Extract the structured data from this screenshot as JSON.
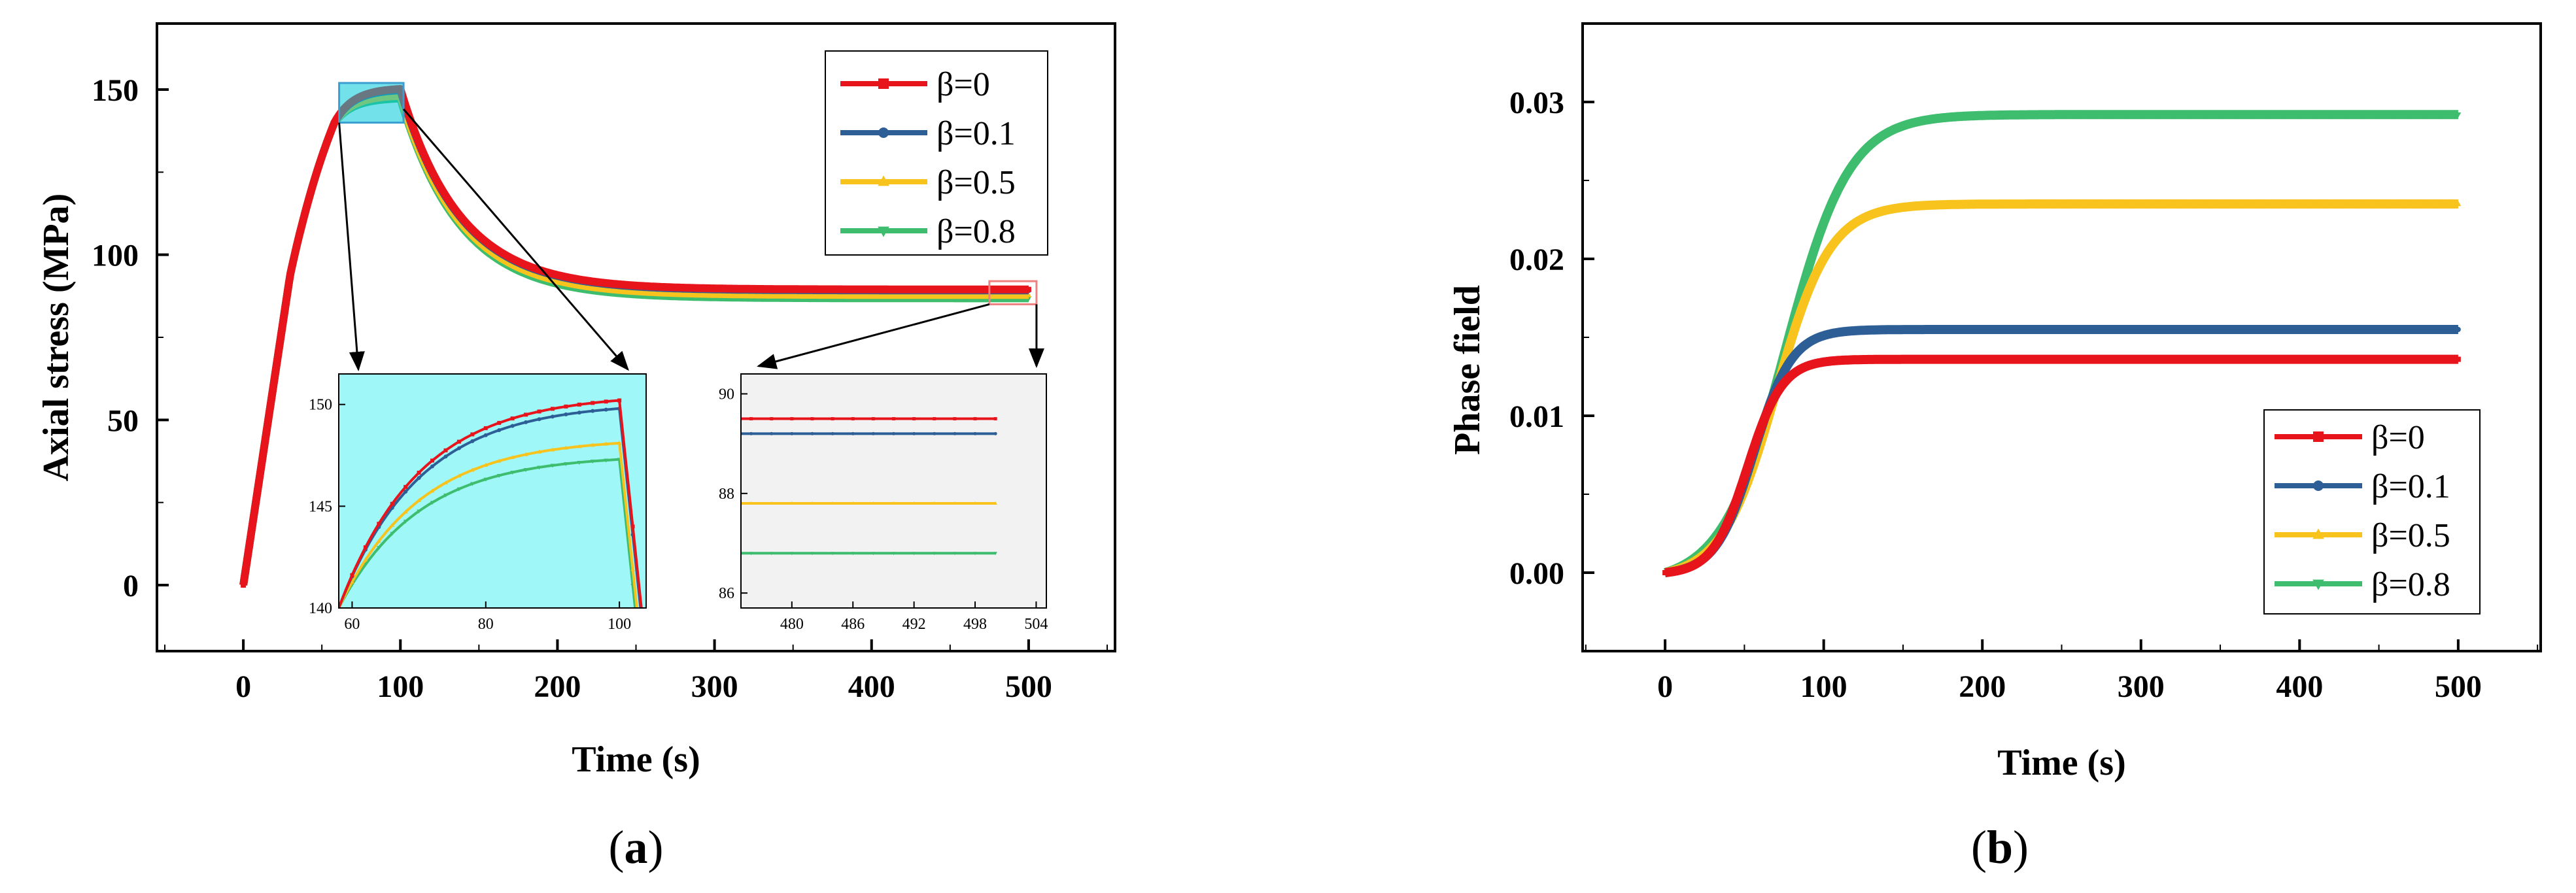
{
  "chart_data": [
    {
      "panel": "(a)",
      "panel_letter": "a",
      "type": "line",
      "xlabel": "Time (s)",
      "ylabel": "Axial stress (MPa)",
      "xlim": [
        -55,
        555
      ],
      "ylim": [
        -20,
        170
      ],
      "xticks": [
        0,
        100,
        200,
        300,
        400,
        500
      ],
      "yticks": [
        0,
        50,
        100,
        150
      ],
      "legend_position": "top-right",
      "series": [
        {
          "name": "β=0",
          "color": "#e8141c",
          "marker": "square",
          "peak": 150.2,
          "residual": 89.5
        },
        {
          "name": "β=0.1",
          "color": "#2d5f96",
          "marker": "circle",
          "peak": 149.8,
          "residual": 89.2
        },
        {
          "name": "β=0.5",
          "color": "#f7c31c",
          "marker": "triangle-up",
          "peak": 148.1,
          "residual": 87.8
        },
        {
          "name": "β=0.8",
          "color": "#3dbd6d",
          "marker": "triangle-down",
          "peak": 147.3,
          "residual": 86.8
        }
      ],
      "insets": [
        {
          "xlim": [
            58,
            104
          ],
          "ylim": [
            140,
            151.5
          ],
          "xticks": [
            60,
            80,
            100
          ],
          "yticks": [
            140,
            145,
            150
          ],
          "background": "#9ff7f7",
          "zoom_region": {
            "x": [
              61,
              102
            ],
            "y": [
              140,
              152
            ]
          }
        },
        {
          "xlim": [
            475,
            505
          ],
          "ylim": [
            85.7,
            90.4
          ],
          "xticks": [
            480,
            486,
            492,
            498,
            504
          ],
          "yticks": [
            86,
            88,
            90
          ],
          "background": "#f2f2f2",
          "zoom_region": {
            "x": [
              475,
              505
            ],
            "y": [
              85,
              92
            ]
          }
        }
      ]
    },
    {
      "panel": "(b)",
      "panel_letter": "b",
      "type": "line",
      "xlabel": "Time (s)",
      "ylabel": "Phase field",
      "xlim": [
        -52,
        552
      ],
      "ylim": [
        -0.005,
        0.035
      ],
      "xticks": [
        0,
        100,
        200,
        300,
        400,
        500
      ],
      "yticks": [
        "0.00",
        "0.01",
        "0.02",
        "0.03"
      ],
      "legend_position": "bottom-right",
      "series": [
        {
          "name": "β=0",
          "color": "#e8141c",
          "marker": "square",
          "final": 0.0136
        },
        {
          "name": "β=0.1",
          "color": "#2d5f96",
          "marker": "circle",
          "final": 0.0155
        },
        {
          "name": "β=0.5",
          "color": "#f7c31c",
          "marker": "triangle-up",
          "final": 0.0235
        },
        {
          "name": "β=0.8",
          "color": "#3dbd6d",
          "marker": "triangle-down",
          "final": 0.0292
        }
      ]
    }
  ]
}
